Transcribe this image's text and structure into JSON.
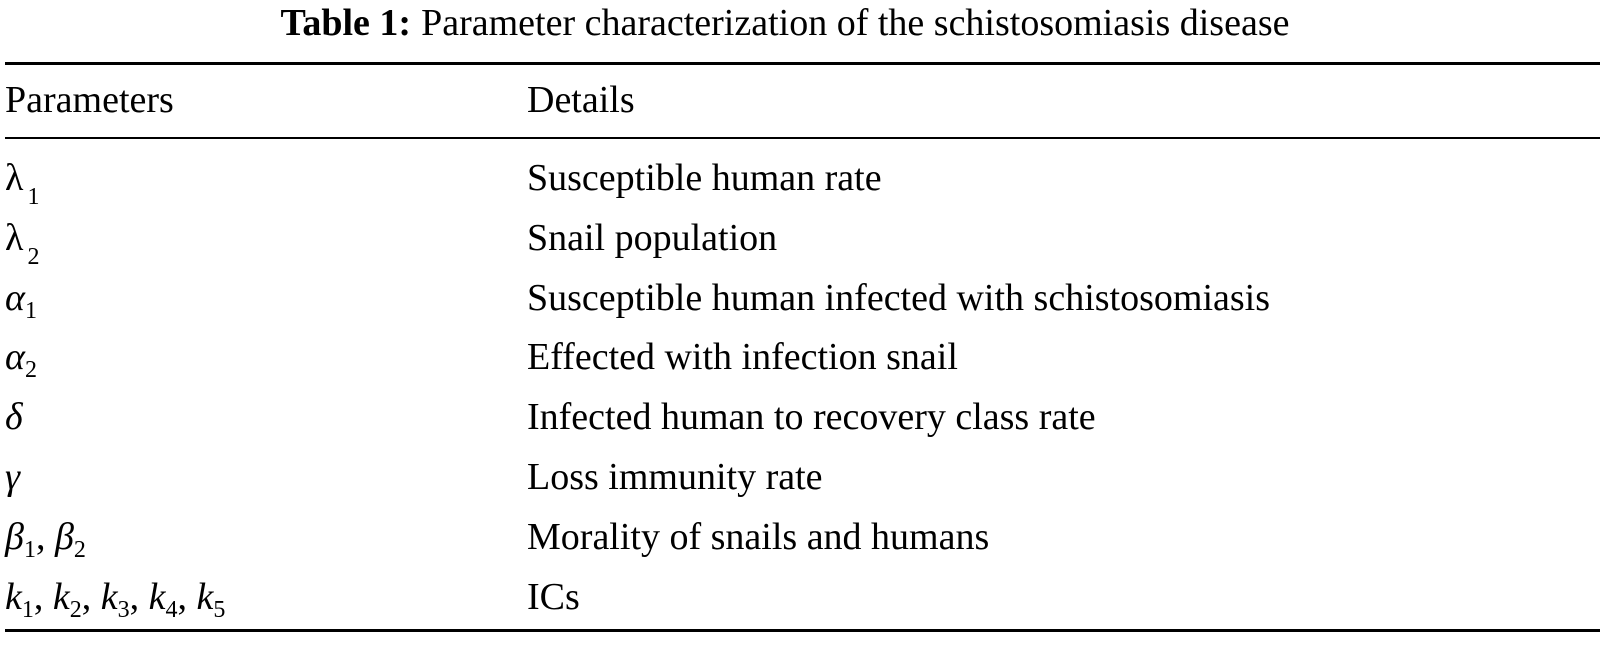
{
  "caption": {
    "label": "Table 1:",
    "text": "Parameter characterization of the schistosomiasis disease"
  },
  "table": {
    "headers": [
      "Parameters",
      "Details"
    ],
    "rows": [
      {
        "param": [
          {
            "base": "λ",
            "sub": "1",
            "italic": false
          }
        ],
        "details": "Susceptible human rate"
      },
      {
        "param": [
          {
            "base": "λ",
            "sub": "2",
            "italic": false
          }
        ],
        "details": "Snail population"
      },
      {
        "param": [
          {
            "base": "α",
            "sub": "1",
            "italic": true
          }
        ],
        "details": "Susceptible human infected with schistosomiasis"
      },
      {
        "param": [
          {
            "base": "α",
            "sub": "2",
            "italic": true
          }
        ],
        "details": "Effected with infection snail"
      },
      {
        "param": [
          {
            "base": "δ",
            "sub": "",
            "italic": true
          }
        ],
        "details": "Infected human to recovery class rate"
      },
      {
        "param": [
          {
            "base": "γ",
            "sub": "",
            "italic": true
          }
        ],
        "details": "Loss immunity rate"
      },
      {
        "param": [
          {
            "base": "β",
            "sub": "1",
            "italic": true
          },
          {
            "base": "β",
            "sub": "2",
            "italic": true
          }
        ],
        "details": "Morality of snails and humans"
      },
      {
        "param": [
          {
            "base": "k",
            "sub": "1",
            "italic": true
          },
          {
            "base": "k",
            "sub": "2",
            "italic": true
          },
          {
            "base": "k",
            "sub": "3",
            "italic": true
          },
          {
            "base": "k",
            "sub": "4",
            "italic": true
          },
          {
            "base": "k",
            "sub": "5",
            "italic": true
          }
        ],
        "details": "ICs"
      }
    ]
  }
}
